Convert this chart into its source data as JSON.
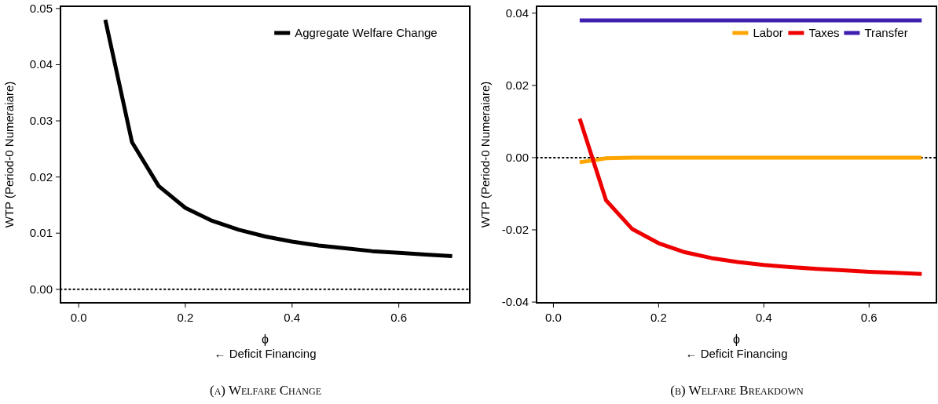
{
  "chart_data": [
    {
      "type": "line",
      "title": "(a) Welfare Change",
      "xlabel": "ϕ",
      "ylabel": "WTP (Period-0 Numeraiare)",
      "annotations": [
        "← Deficit Financing"
      ],
      "x": [
        0.05,
        0.1,
        0.15,
        0.2,
        0.25,
        0.3,
        0.35,
        0.4,
        0.45,
        0.5,
        0.55,
        0.6,
        0.65,
        0.7
      ],
      "series": [
        {
          "name": "Aggregate Welfare Change",
          "color": "#000000",
          "values": [
            0.048,
            0.0262,
            0.0184,
            0.0145,
            0.0122,
            0.0106,
            0.0094,
            0.0085,
            0.0078,
            0.0073,
            0.0068,
            0.0065,
            0.0062,
            0.0059
          ]
        }
      ],
      "xlim": [
        -0.034,
        0.733
      ],
      "xticks": [
        {
          "value": 0,
          "label": "0.0"
        },
        0.2,
        0.4,
        0.6
      ],
      "ylim": [
        -0.0024,
        0.0504
      ],
      "yticks": [
        {
          "value": 0,
          "label": "0.00"
        },
        {
          "value": 0.01,
          "label": "0.01"
        },
        {
          "value": 0.02,
          "label": "0.02"
        },
        {
          "value": 0.03,
          "label": "0.03"
        },
        {
          "value": 0.04,
          "label": "0.04"
        },
        {
          "value": 0.05,
          "label": "0.05"
        }
      ],
      "ref_lines": [
        {
          "axis": "y",
          "value": 0,
          "color": "#000000",
          "line_style": "dotted"
        }
      ],
      "legend": "top right",
      "grid": false,
      "line_style": "solid"
    },
    {
      "type": "line",
      "title": "(b) Welfare Breakdown",
      "xlabel": "ϕ",
      "ylabel": "WTP (Period-0 Numeraiare)",
      "annotations": [
        "← Deficit Financing"
      ],
      "x": [
        0.05,
        0.1,
        0.15,
        0.2,
        0.25,
        0.3,
        0.35,
        0.4,
        0.45,
        0.5,
        0.55,
        0.6,
        0.65,
        0.7
      ],
      "series": [
        {
          "name": "Labor",
          "color": "#ffa500",
          "values": [
            -0.0013,
            -0.0002,
            0,
            0,
            0,
            0,
            0,
            0,
            0,
            0,
            0,
            0,
            0,
            0
          ]
        },
        {
          "name": "Taxes",
          "color": "#ee0000",
          "values": [
            0.0108,
            -0.0118,
            -0.0198,
            -0.0237,
            -0.0262,
            -0.0278,
            -0.0289,
            -0.0297,
            -0.0303,
            -0.0308,
            -0.0312,
            -0.0316,
            -0.0319,
            -0.0322
          ]
        },
        {
          "name": "Transfer",
          "color": "#3f1fb0",
          "values": [
            0.038,
            0.038,
            0.038,
            0.038,
            0.038,
            0.038,
            0.038,
            0.038,
            0.038,
            0.038,
            0.038,
            0.038,
            0.038,
            0.038
          ]
        }
      ],
      "xlim": [
        -0.032,
        0.728
      ],
      "xticks": [
        {
          "value": 0,
          "label": "0.0"
        },
        0.2,
        0.4,
        0.6
      ],
      "ylim": [
        -0.0402,
        0.0419
      ],
      "yticks": [
        {
          "value": -0.04,
          "label": "-0.04"
        },
        {
          "value": -0.02,
          "label": "-0.02"
        },
        {
          "value": 0,
          "label": "0.00"
        },
        {
          "value": 0.02,
          "label": "0.02"
        },
        {
          "value": 0.04,
          "label": "0.04"
        }
      ],
      "ref_lines": [
        {
          "axis": "y",
          "value": 0,
          "color": "#000000",
          "line_style": "dotted"
        }
      ],
      "legend": "top right",
      "grid": false,
      "line_style": "solid"
    }
  ]
}
